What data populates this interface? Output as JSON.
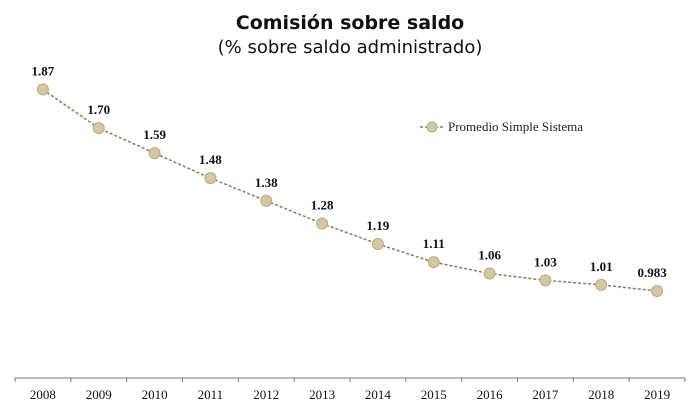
{
  "chart_data": {
    "type": "line",
    "title": "Comisión sobre saldo",
    "subtitle": "(% sobre saldo administrado)",
    "xlabel": "",
    "ylabel": "",
    "categories": [
      "2008",
      "2009",
      "2010",
      "2011",
      "2012",
      "2013",
      "2014",
      "2015",
      "2016",
      "2017",
      "2018",
      "2019"
    ],
    "series": [
      {
        "name": "Promedio Simple Sistema",
        "values": [
          1.87,
          1.7,
          1.59,
          1.48,
          1.38,
          1.28,
          1.19,
          1.11,
          1.06,
          1.03,
          1.01,
          0.983
        ],
        "labels": [
          "1.87",
          "1.70",
          "1.59",
          "1.48",
          "1.38",
          "1.28",
          "1.19",
          "1.11",
          "1.06",
          "1.03",
          "1.01",
          "0.983"
        ],
        "color": "#d6c7a3",
        "line_color": "#8a7b5c"
      }
    ],
    "ylim": [
      0.6,
      2.0
    ],
    "grid": false,
    "legend_position": "top-right"
  }
}
